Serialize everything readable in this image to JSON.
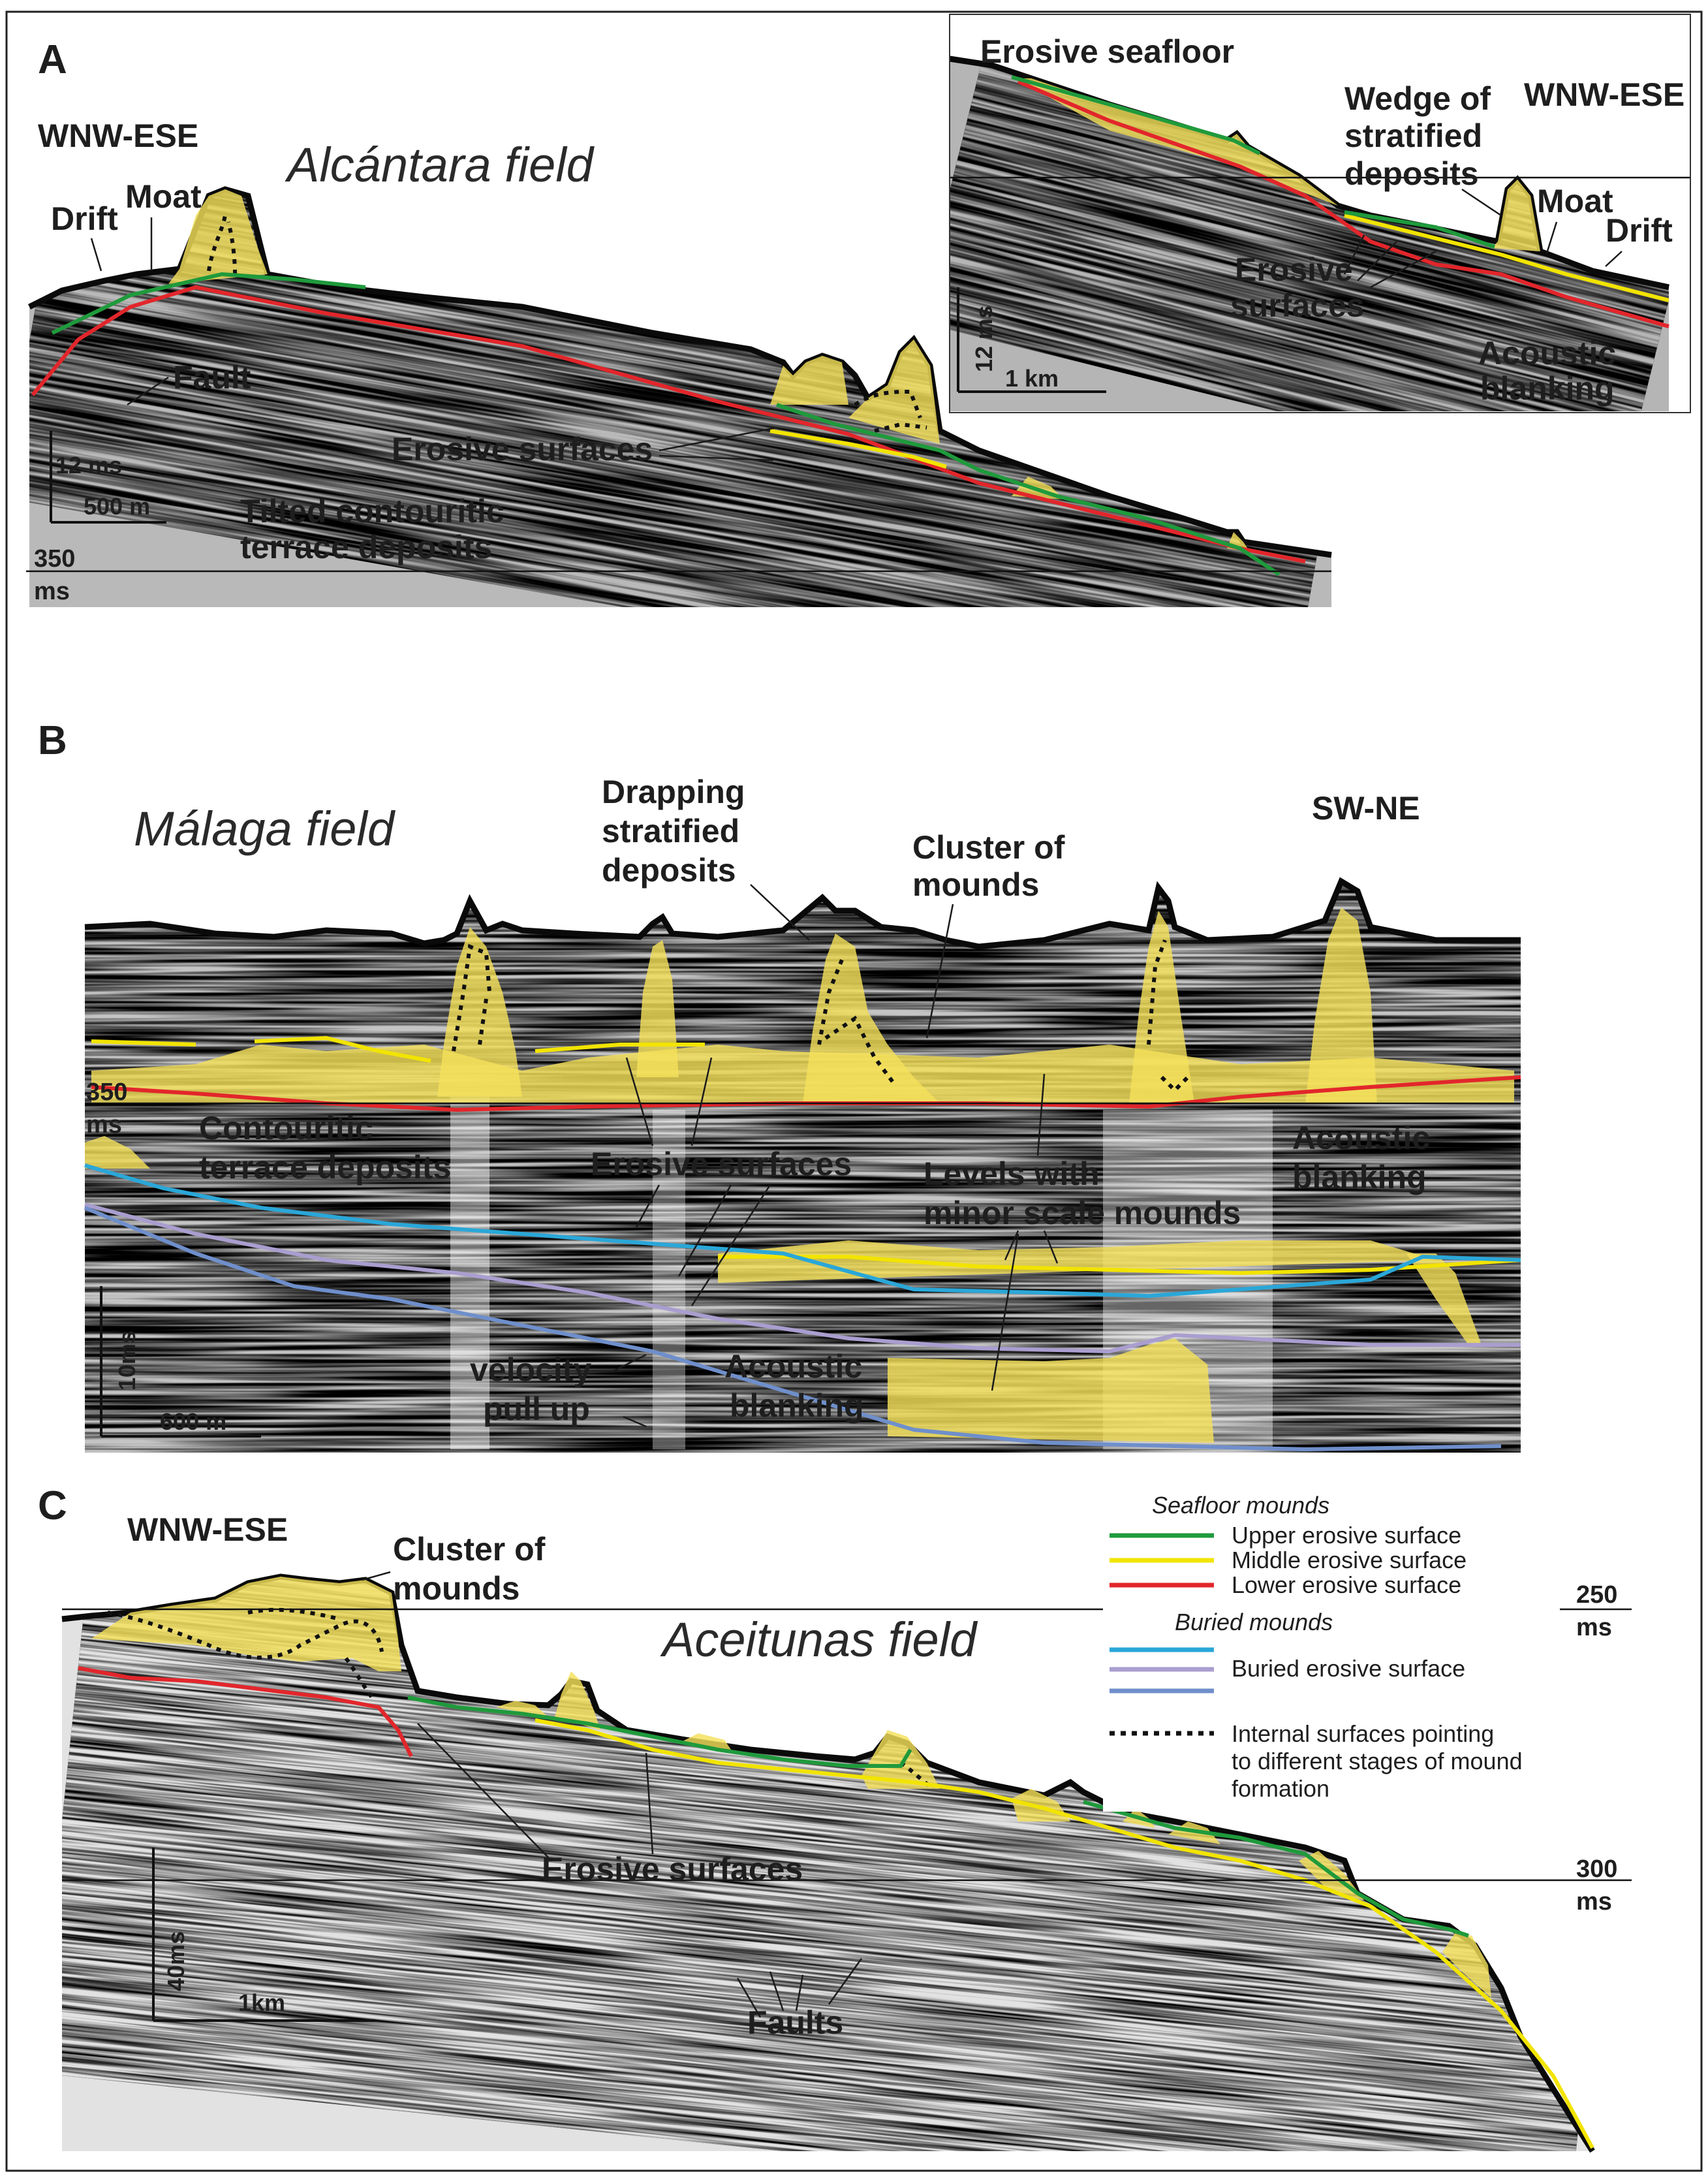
{
  "panels": {
    "a": {
      "letter": "A",
      "field": "Alcántara field",
      "orientation_main": "WNW-ESE",
      "orientation_inset": "WNW-ESE",
      "ms_marker_value": "350",
      "ms_marker_unit": "ms",
      "scale_vertical_main": "12 ms",
      "scale_horizontal_main": "500 m",
      "scale_vertical_inset": "12 ms",
      "scale_horizontal_inset": "1 km",
      "labels": {
        "drift": "Drift",
        "moat": "Moat",
        "fault": "Fault",
        "erosive_surfaces": "Erosive surfaces",
        "tilted_1": "Tilted contouritic",
        "tilted_2": "terrace deposits",
        "erosive_seafloor": "Erosive seafloor",
        "wedge_1": "Wedge of",
        "wedge_2": "stratified",
        "wedge_3": "deposits",
        "inset_moat": "Moat",
        "inset_drift": "Drift",
        "inset_erosive_1": "Erosive",
        "inset_erosive_2": "surfaces",
        "inset_blanking_1": "Acoustic",
        "inset_blanking_2": "blanking"
      }
    },
    "b": {
      "letter": "B",
      "field": "Málaga field",
      "orientation": "SW-NE",
      "ms_marker_value": "350",
      "ms_marker_unit": "ms",
      "scale_vertical": "10ms",
      "scale_horizontal": "600 m",
      "labels": {
        "drapping_1": "Drapping",
        "drapping_2": "stratified",
        "drapping_3": "deposits",
        "cluster_1": "Cluster of",
        "cluster_2": "mounds",
        "contouritic_1": "Contouritic",
        "contouritic_2": "terrace deposits",
        "erosive_surfaces": "Erosive surfaces",
        "levels_1": "Levels with",
        "levels_2": "minor scale mounds",
        "blanking_right_1": "Acoustic",
        "blanking_right_2": "blanking",
        "velocity_1": "velocity",
        "velocity_2": "pull up",
        "blanking_low_1": "Acoustic",
        "blanking_low_2": "blanking"
      }
    },
    "c": {
      "letter": "C",
      "field": "Aceitunas field",
      "orientation": "WNW-ESE",
      "ms_top_value": "250",
      "ms_top_unit": "ms",
      "ms_bottom_value": "300",
      "ms_bottom_unit": "ms",
      "scale_vertical": "40ms",
      "scale_horizontal": "1km",
      "labels": {
        "cluster_1": "Cluster of",
        "cluster_2": "mounds",
        "erosive_surfaces": "Erosive surfaces",
        "faults": "Faults"
      }
    }
  },
  "legend": {
    "seafloor_heading": "Seafloor mounds",
    "upper": "Upper erosive surface",
    "middle": "Middle erosive surface",
    "lower": "Lower erosive surface",
    "buried_heading": "Buried mounds",
    "buried": "Buried erosive surface",
    "internal_1": "Internal surfaces pointing",
    "internal_2": "to different stages of mound",
    "internal_3": "formation"
  },
  "colors": {
    "upper": "#1f9a3c",
    "middle": "#f2e400",
    "lower": "#e2262b",
    "buried_cyan": "#2aa7d8",
    "buried_lilac": "#a99ecf",
    "buried_blue": "#6f8fcb",
    "mound_fill": "#f4e15a"
  }
}
